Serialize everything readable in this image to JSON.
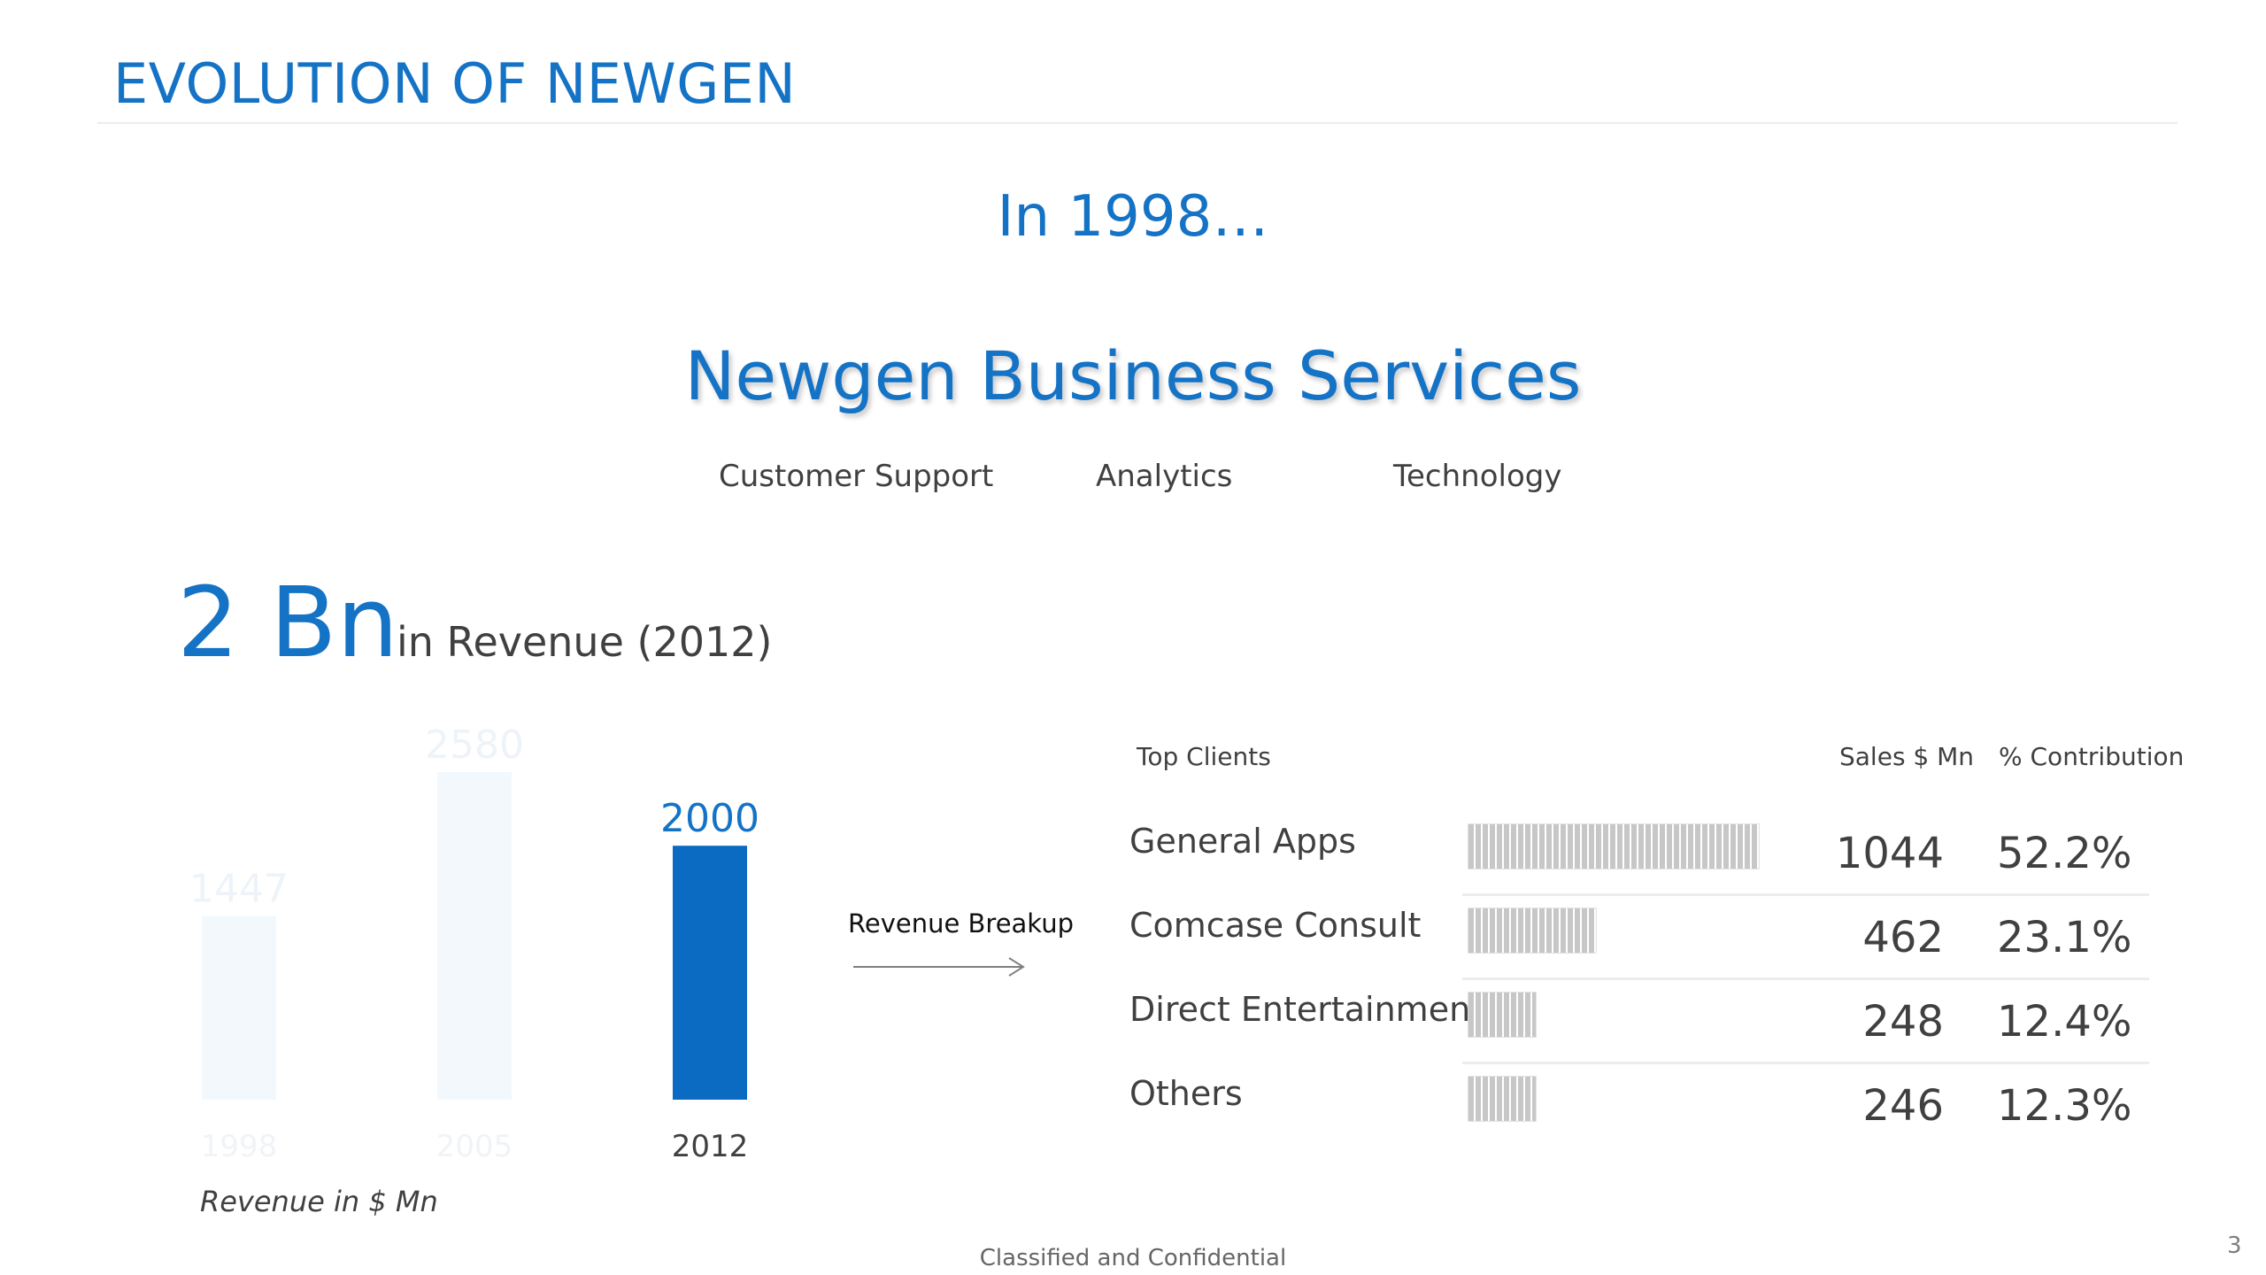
{
  "slide": {
    "title": "EVOLUTION OF NEWGEN",
    "intro": "In 1998…",
    "company_name": "Newgen Business Services",
    "services": [
      "Customer Support",
      "Analytics",
      "Technology"
    ],
    "headline_figure": "2 Bn",
    "headline_label": "in Revenue (2012)",
    "revenue_axis_note": "Revenue in $ Mn",
    "breakup_label": "Revenue Breakup",
    "footer": "Classified and Confidential",
    "page_number": "3"
  },
  "colors": {
    "accent": "#1573c6",
    "bar_highlight": "#0b6bc2",
    "bar_faded": "#f3f8fd"
  },
  "chart_data": [
    {
      "type": "bar",
      "categories": [
        "1998",
        "2005",
        "2012"
      ],
      "values": [
        1447,
        2580,
        2000
      ],
      "highlight_index": 2,
      "ylabel": "Revenue in $ Mn",
      "ylim": [
        0,
        2580
      ]
    },
    {
      "type": "table",
      "columns": [
        "Top Clients",
        "Sales $ Mn",
        "% Contribution"
      ],
      "rows": [
        {
          "client": "General Apps",
          "sales": 1044,
          "sales_text": "1044",
          "contribution": "52.2%"
        },
        {
          "client": "Comcase Consult",
          "sales": 462,
          "sales_text": "462",
          "contribution": "23.1%"
        },
        {
          "client": "Direct Entertainment",
          "sales": 248,
          "sales_text": "248",
          "contribution": "12.4%"
        },
        {
          "client": "Others",
          "sales": 246,
          "sales_text": "246",
          "contribution": "12.3%"
        }
      ]
    }
  ]
}
